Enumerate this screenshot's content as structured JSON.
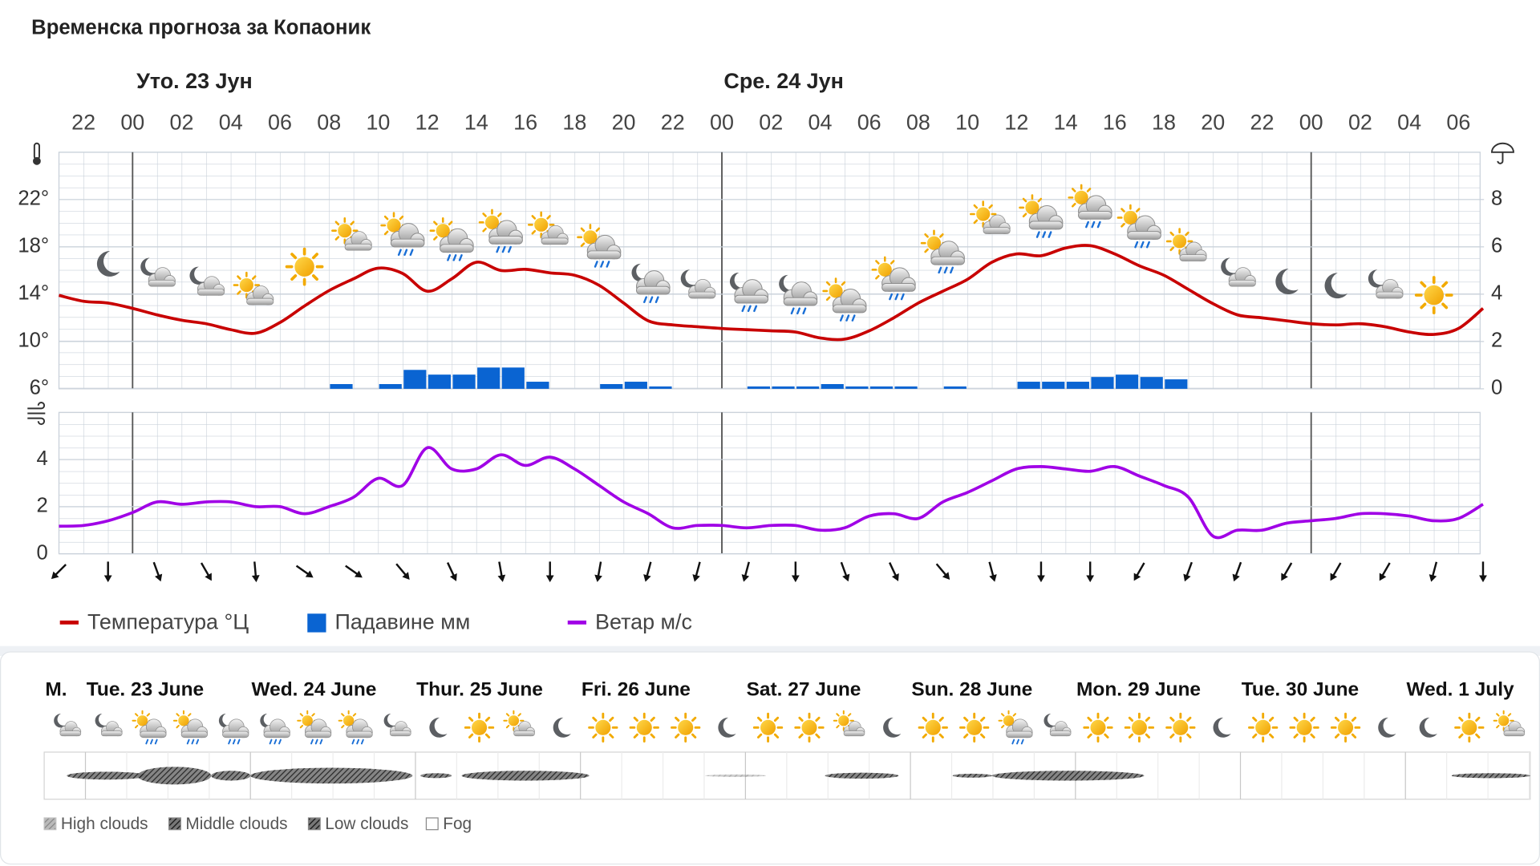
{
  "title": "Временска прогноза за Копаоник",
  "chart_data": [
    {
      "type": "combo",
      "day_labels": [
        "Уто. 23 Јун",
        "Сре. 24 Јун"
      ],
      "categories": [
        null,
        "22",
        null,
        "00",
        null,
        "02",
        null,
        "04",
        null,
        "06",
        null,
        "08",
        null,
        "10",
        null,
        "12",
        null,
        "14",
        null,
        "16",
        null,
        "18",
        null,
        "20",
        null,
        "22",
        null,
        "00",
        null,
        "02",
        null,
        "04",
        null,
        "06",
        null,
        "08",
        null,
        "10",
        null,
        "12",
        null,
        "14",
        null,
        "16",
        null,
        "18",
        null,
        "20",
        null,
        "22",
        null,
        "00",
        null,
        "02",
        null,
        "04",
        null,
        "06",
        null
      ],
      "series": [
        {
          "name": "Температура °Ц",
          "color": "#c80000",
          "type": "line",
          "values": [
            13.9,
            13.4,
            13.25,
            12.8,
            12.25,
            11.8,
            11.5,
            11.0,
            10.7,
            11.6,
            13.0,
            14.3,
            15.3,
            16.2,
            15.75,
            14.25,
            15.3,
            16.7,
            16.0,
            16.1,
            15.8,
            15.6,
            14.75,
            13.25,
            11.75,
            11.4,
            11.25,
            11.1,
            11.0,
            10.9,
            10.8,
            10.3,
            10.2,
            10.9,
            12.0,
            13.25,
            14.25,
            15.25,
            16.7,
            17.4,
            17.25,
            17.9,
            18.1,
            17.4,
            16.4,
            15.6,
            14.4,
            13.2,
            12.25,
            12.0,
            11.75,
            11.5,
            11.4,
            11.5,
            11.25,
            10.8,
            10.6,
            11.1,
            12.8
          ]
        },
        {
          "name": "Падавине мм",
          "color": "#0a64d2",
          "type": "bar",
          "axis": "y2",
          "values": [
            0,
            0,
            0,
            0,
            0,
            0,
            0,
            0,
            0,
            0,
            0,
            0.2,
            0,
            0.2,
            0.8,
            0.6,
            0.6,
            0.9,
            0.9,
            0.3,
            0,
            0,
            0.2,
            0.3,
            0.1,
            0,
            0,
            0,
            0.1,
            0.1,
            0.1,
            0.2,
            0.1,
            0.1,
            0.1,
            0,
            0.1,
            0,
            0,
            0.3,
            0.3,
            0.3,
            0.5,
            0.6,
            0.5,
            0.4,
            0,
            0,
            0,
            0,
            0,
            0,
            0,
            0,
            0,
            0,
            0,
            0,
            0
          ]
        }
      ],
      "ylim": [
        6,
        26
      ],
      "yticks": [
        {
          "value": 6,
          "label": "6°"
        },
        {
          "value": 10,
          "label": "10°"
        },
        {
          "value": 14,
          "label": "14°"
        },
        {
          "value": 18,
          "label": "18°"
        },
        {
          "value": 22,
          "label": "22°"
        }
      ],
      "y2lim": [
        0,
        10
      ],
      "y2ticks": [
        0,
        2,
        4,
        6,
        8
      ],
      "grid": true
    },
    {
      "type": "line",
      "series": [
        {
          "name": "Ветар м/с",
          "color": "#a000e6",
          "values": [
            1.17,
            1.2,
            1.4,
            1.75,
            2.2,
            2.1,
            2.2,
            2.2,
            2.0,
            2.0,
            1.7,
            2.0,
            2.4,
            3.2,
            2.9,
            4.5,
            3.6,
            3.6,
            4.2,
            3.75,
            4.1,
            3.6,
            2.9,
            2.2,
            1.7,
            1.1,
            1.2,
            1.2,
            1.1,
            1.2,
            1.2,
            1.0,
            1.1,
            1.6,
            1.7,
            1.5,
            2.2,
            2.6,
            3.1,
            3.6,
            3.7,
            3.6,
            3.5,
            3.7,
            3.3,
            2.9,
            2.4,
            0.75,
            1.0,
            1.0,
            1.3,
            1.4,
            1.5,
            1.7,
            1.7,
            1.6,
            1.4,
            1.5,
            2.1
          ]
        }
      ],
      "wind_direction": [
        45,
        0,
        340,
        330,
        355,
        305,
        305,
        320,
        335,
        350,
        0,
        10,
        15,
        15,
        15,
        0,
        340,
        335,
        320,
        345,
        0,
        0,
        30,
        20,
        20,
        30,
        30,
        30,
        15,
        0
      ],
      "ylim": [
        0,
        6
      ],
      "yticks": [
        0,
        2,
        4
      ],
      "grid": true
    }
  ],
  "outlook": {
    "days": [
      "M.",
      "Tue. 23 June",
      "Wed. 24 June",
      "Thur. 25 June",
      "Fri. 26 June",
      "Sat. 27 June",
      "Sun. 28 June",
      "Mon. 29 June",
      "Tue. 30 June",
      "Wed. 1 July"
    ],
    "legend": [
      "High clouds",
      "Middle clouds",
      "Low clouds",
      "Fog"
    ]
  }
}
